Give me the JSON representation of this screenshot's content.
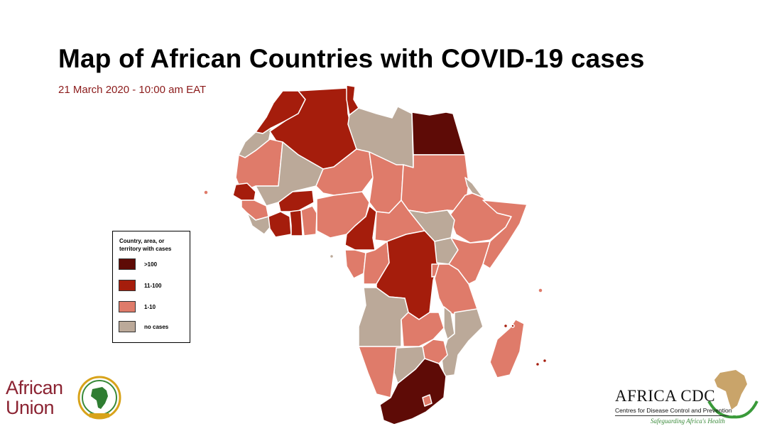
{
  "header": {
    "title": "Map of African Countries with COVID-19 cases",
    "date": "21 March 2020 - 10:00 am EAT"
  },
  "legend": {
    "title": "Country, area, or territory with cases",
    "items": [
      {
        "label": ">100",
        "color": "#5e0b06"
      },
      {
        "label": "11-100",
        "color": "#a51d0c"
      },
      {
        "label": "1-10",
        "color": "#df7b6a"
      },
      {
        "label": "no cases",
        "color": "#bba999"
      }
    ]
  },
  "map": {
    "categories": {
      "very-high": "#5e0b06",
      "high": "#a51d0c",
      "low": "#df7b6a",
      "none": "#bba999"
    },
    "border_color": "#ffffff"
  },
  "logos": {
    "african_union": {
      "line1": "African",
      "line2": "Union"
    },
    "africa_cdc": {
      "name": "AFRICA CDC",
      "subtitle": "Centres for Disease Control and Prevention",
      "tagline": "Safeguarding Africa's Health"
    }
  }
}
